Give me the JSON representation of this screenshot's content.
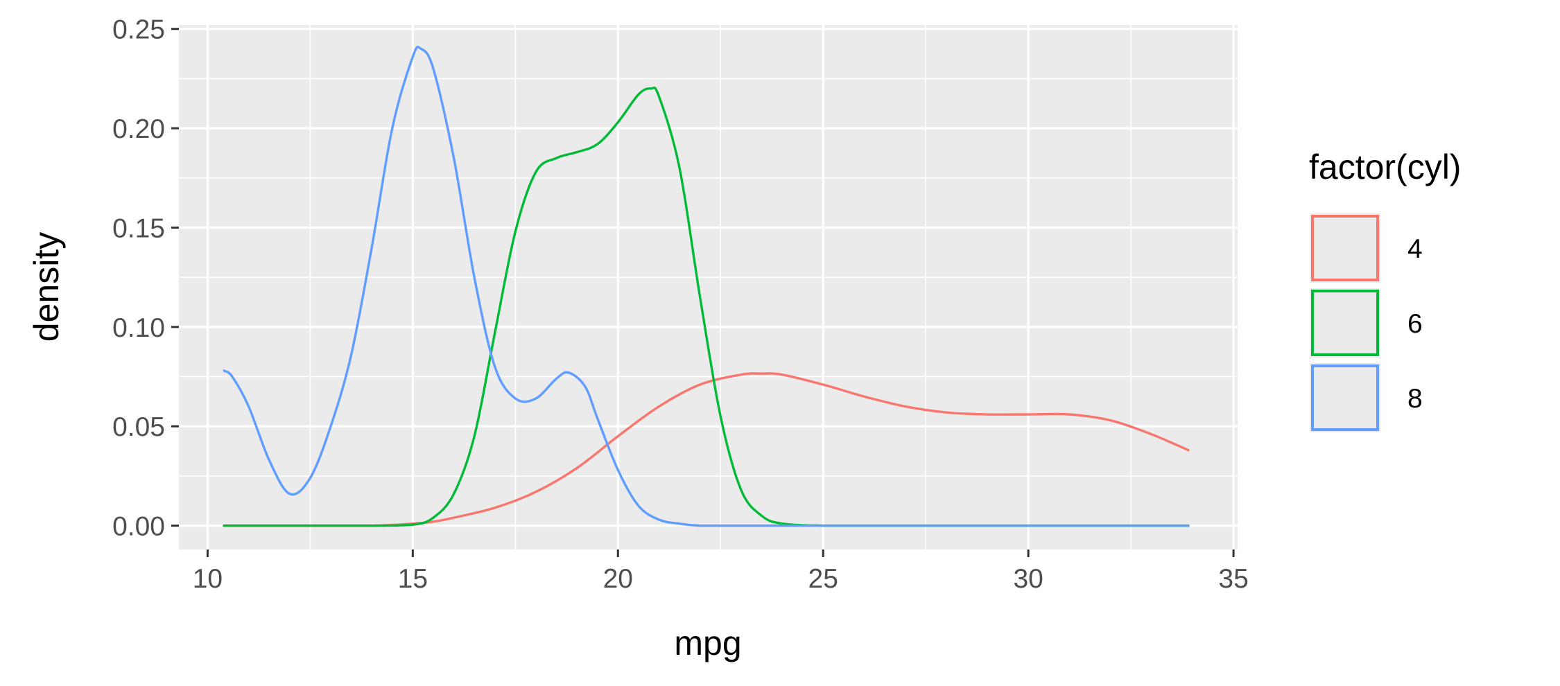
{
  "chart_data": {
    "type": "line",
    "subtype": "density",
    "xlabel": "mpg",
    "ylabel": "density",
    "xlim": [
      9.3,
      35.1
    ],
    "ylim": [
      -0.012,
      0.252
    ],
    "x_ticks": [
      10,
      15,
      20,
      25,
      30,
      35
    ],
    "x_tick_labels": [
      "10",
      "15",
      "20",
      "25",
      "30",
      "35"
    ],
    "y_ticks": [
      0.0,
      0.05,
      0.1,
      0.15,
      0.2,
      0.25
    ],
    "y_tick_labels": [
      "0.00",
      "0.05",
      "0.10",
      "0.15",
      "0.20",
      "0.25"
    ],
    "grid": true,
    "legend": {
      "title": "factor(cyl)",
      "position": "right"
    },
    "series": [
      {
        "name": "4",
        "color": "#F8766D",
        "x": [
          10.4,
          12.0,
          14.0,
          15.0,
          15.5,
          16.0,
          17.0,
          18.0,
          19.0,
          20.0,
          21.0,
          22.0,
          23.0,
          23.5,
          24.0,
          25.0,
          26.0,
          27.0,
          28.0,
          29.0,
          30.0,
          31.0,
          32.0,
          33.0,
          33.9
        ],
        "y": [
          0.0,
          0.0,
          0.0,
          0.001,
          0.002,
          0.004,
          0.009,
          0.017,
          0.029,
          0.045,
          0.06,
          0.071,
          0.076,
          0.0765,
          0.076,
          0.071,
          0.065,
          0.06,
          0.057,
          0.056,
          0.056,
          0.056,
          0.053,
          0.046,
          0.038
        ]
      },
      {
        "name": "6",
        "color": "#00BA38",
        "x": [
          10.4,
          12.0,
          14.0,
          15.0,
          15.5,
          16.0,
          16.5,
          17.0,
          17.5,
          18.0,
          18.5,
          19.0,
          19.5,
          20.0,
          20.5,
          20.8,
          21.0,
          21.5,
          22.0,
          22.5,
          23.0,
          23.5,
          24.0,
          25.0,
          26.0,
          30.0,
          33.9
        ],
        "y": [
          0.0,
          0.0,
          0.0,
          0.0005,
          0.004,
          0.016,
          0.045,
          0.097,
          0.148,
          0.178,
          0.185,
          0.188,
          0.192,
          0.203,
          0.217,
          0.22,
          0.216,
          0.18,
          0.115,
          0.055,
          0.018,
          0.005,
          0.001,
          0.0,
          0.0,
          0.0,
          0.0
        ]
      },
      {
        "name": "8",
        "color": "#619CFF",
        "x": [
          10.4,
          10.6,
          11.0,
          11.5,
          12.0,
          12.5,
          13.0,
          13.5,
          14.0,
          14.5,
          15.0,
          15.2,
          15.5,
          16.0,
          16.5,
          17.0,
          17.5,
          18.0,
          18.5,
          18.8,
          19.2,
          19.5,
          20.0,
          20.5,
          21.0,
          21.5,
          22.0,
          23.0,
          25.0,
          30.0,
          33.9
        ],
        "y": [
          0.078,
          0.075,
          0.06,
          0.033,
          0.016,
          0.024,
          0.05,
          0.086,
          0.14,
          0.2,
          0.236,
          0.24,
          0.23,
          0.185,
          0.125,
          0.08,
          0.064,
          0.064,
          0.074,
          0.077,
          0.07,
          0.054,
          0.028,
          0.01,
          0.003,
          0.001,
          0.0,
          0.0,
          0.0,
          0.0,
          0.0
        ]
      }
    ]
  }
}
